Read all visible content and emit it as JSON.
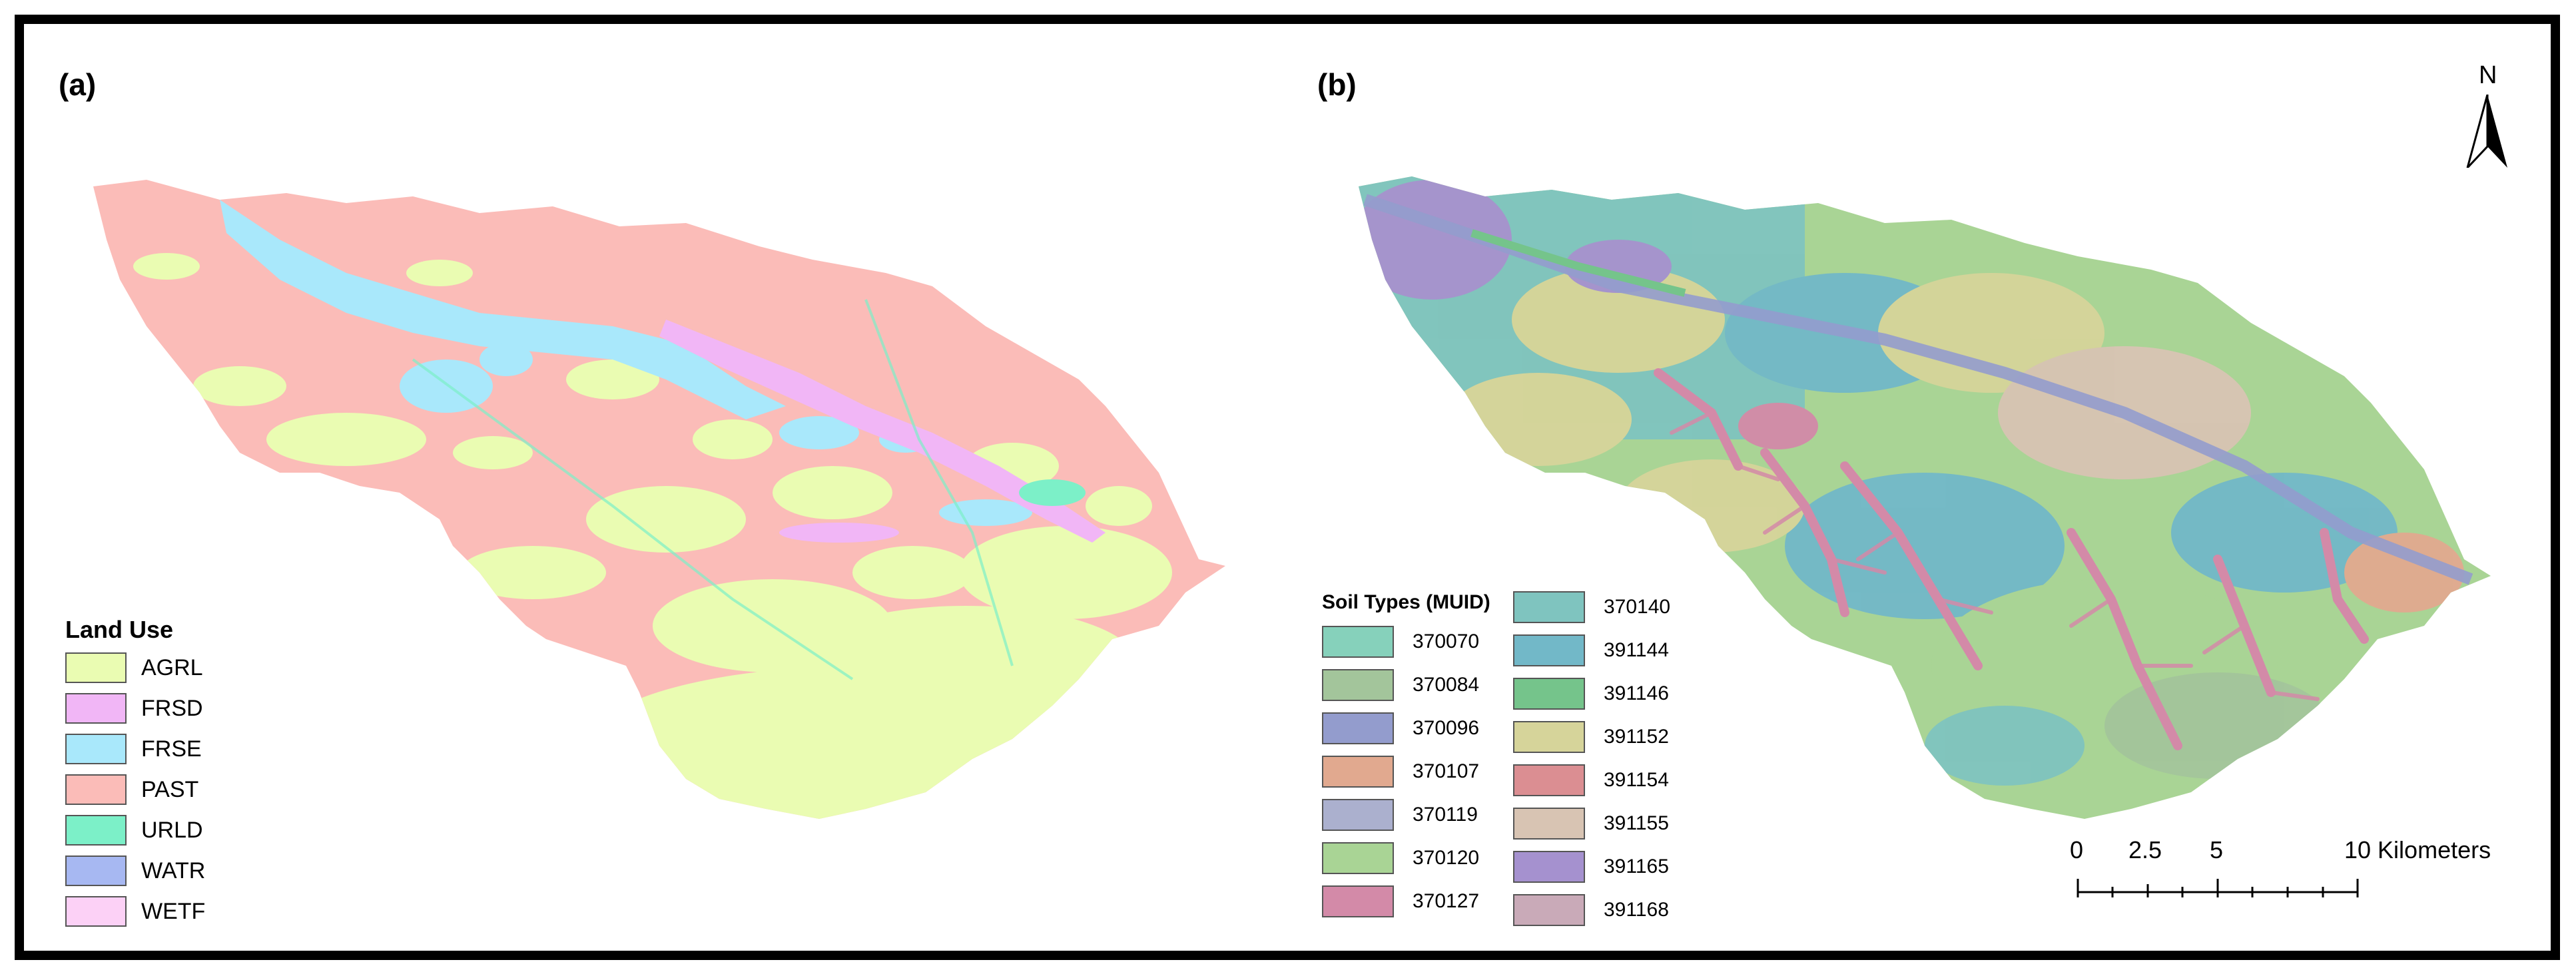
{
  "panel_a": {
    "label": "(a)",
    "legend": {
      "title": "Land Use",
      "items": [
        {
          "code": "AGRL",
          "color": "#eafcb2"
        },
        {
          "code": "FRSD",
          "color": "#f1b6f6"
        },
        {
          "code": "FRSE",
          "color": "#a9e8fb"
        },
        {
          "code": "PAST",
          "color": "#fbbcb8"
        },
        {
          "code": "URLD",
          "color": "#7cf0c8"
        },
        {
          "code": "WATR",
          "color": "#a7b8f2"
        },
        {
          "code": "WETF",
          "color": "#fcd1f6"
        }
      ]
    }
  },
  "panel_b": {
    "label": "(b)",
    "legend": {
      "title": "Soil Types (MUID)",
      "items": [
        {
          "code": "370070",
          "color": "#86d1bb"
        },
        {
          "code": "370084",
          "color": "#a3c59b"
        },
        {
          "code": "370096",
          "color": "#939ccd"
        },
        {
          "code": "370107",
          "color": "#e1a98f"
        },
        {
          "code": "370119",
          "color": "#abb0ce"
        },
        {
          "code": "370120",
          "color": "#a9d495"
        },
        {
          "code": "370127",
          "color": "#d38aa8"
        },
        {
          "code": "370140",
          "color": "#7fc4bf"
        },
        {
          "code": "391144",
          "color": "#72b8c8"
        },
        {
          "code": "391146",
          "color": "#75c48b"
        },
        {
          "code": "391152",
          "color": "#d6d49a"
        },
        {
          "code": "391154",
          "color": "#db8e92"
        },
        {
          "code": "391155",
          "color": "#d8c4b3"
        },
        {
          "code": "391165",
          "color": "#a591cf"
        },
        {
          "code": "391168",
          "color": "#c9aab8"
        }
      ]
    }
  },
  "north_arrow": {
    "label": "N"
  },
  "scale_bar": {
    "ticks": [
      "0",
      "2.5",
      "5",
      "10 Kilometers"
    ]
  }
}
